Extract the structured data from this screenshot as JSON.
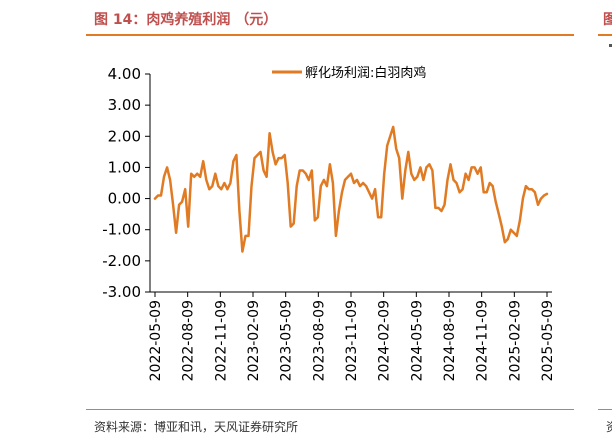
{
  "header": {
    "title": "图 14：肉鸡养殖利润 （元）",
    "right_mark": "图"
  },
  "footer": {
    "source": "资料来源：博亚和讯，天风证券研究所",
    "right_mark": "资"
  },
  "colors": {
    "accent": "#e07b24",
    "title": "#c0504d",
    "line": "#e07b24"
  },
  "chart_data": {
    "type": "line",
    "title": "",
    "xlabel": "",
    "ylabel": "",
    "ylim": [
      -3,
      4
    ],
    "yticks": [
      "4.00",
      "3.00",
      "2.00",
      "1.00",
      "0.00",
      "-1.00",
      "-2.00",
      "-3.00"
    ],
    "xticks": [
      "2022-05-09",
      "2022-08-09",
      "2022-11-09",
      "2023-02-09",
      "2023-05-09",
      "2023-08-09",
      "2023-11-09",
      "2024-02-09",
      "2024-05-09",
      "2024-08-09",
      "2024-11-09",
      "2025-02-09",
      "2025-05-09"
    ],
    "x_start": "2022-05-09",
    "x_end": "2025-05-09",
    "grid": false,
    "legend": "top-center",
    "series": [
      {
        "name": "孵化场利润:白羽肉鸡",
        "color": "#e07b24",
        "values": [
          0.0,
          0.1,
          0.1,
          0.7,
          1.0,
          0.6,
          -0.2,
          -1.1,
          -0.2,
          -0.1,
          0.3,
          -0.9,
          0.8,
          0.7,
          0.8,
          0.7,
          1.2,
          0.6,
          0.3,
          0.4,
          0.8,
          0.4,
          0.3,
          0.5,
          0.3,
          0.5,
          1.2,
          1.4,
          -0.4,
          -1.7,
          -1.2,
          -1.2,
          0.4,
          1.3,
          1.4,
          1.5,
          0.9,
          0.7,
          2.1,
          1.5,
          1.1,
          1.3,
          1.3,
          1.4,
          0.5,
          -0.9,
          -0.8,
          0.4,
          0.9,
          0.9,
          0.8,
          0.6,
          0.9,
          -0.7,
          -0.6,
          0.4,
          0.6,
          0.4,
          1.1,
          0.5,
          -1.2,
          -0.4,
          0.2,
          0.6,
          0.7,
          0.8,
          0.5,
          0.6,
          0.4,
          0.5,
          0.4,
          0.2,
          0.0,
          0.3,
          -0.6,
          -0.6,
          0.8,
          1.7,
          2.0,
          2.3,
          1.6,
          1.3,
          0.0,
          0.9,
          1.5,
          0.8,
          0.6,
          0.7,
          1.0,
          0.6,
          1.0,
          1.1,
          0.9,
          -0.3,
          -0.3,
          -0.4,
          -0.2,
          0.6,
          1.1,
          0.6,
          0.5,
          0.2,
          0.3,
          0.8,
          0.6,
          1.0,
          1.0,
          0.8,
          1.0,
          0.2,
          0.2,
          0.5,
          0.4,
          -0.1,
          -0.5,
          -0.9,
          -1.4,
          -1.3,
          -1.0,
          -1.1,
          -1.2,
          -0.7,
          0.0,
          0.4,
          0.3,
          0.3,
          0.2,
          -0.2,
          0.0,
          0.1,
          0.15
        ]
      }
    ]
  }
}
